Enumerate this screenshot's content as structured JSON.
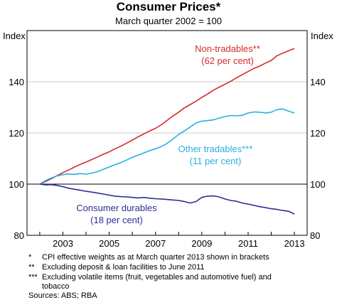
{
  "chart_data": {
    "type": "line",
    "title": "Consumer Prices*",
    "subtitle": "March quarter 2002 = 100",
    "ylabel_left": "Index",
    "ylabel_right": "Index",
    "ylim": [
      80,
      160
    ],
    "xlim": [
      2001.45,
      2013.55
    ],
    "yticks": [
      80,
      100,
      120,
      140
    ],
    "xticks": [
      2003,
      2005,
      2007,
      2009,
      2011,
      2013
    ],
    "grid": true,
    "series": [
      {
        "name": "Non-tradables**",
        "label_line1": "Non-tradables**",
        "label_line2": "(62 per cent)",
        "color": "#d22b2b",
        "x": [
          2002.0,
          2002.25,
          2002.5,
          2002.75,
          2003.0,
          2003.25,
          2003.5,
          2003.75,
          2004.0,
          2004.25,
          2004.5,
          2004.75,
          2005.0,
          2005.25,
          2005.5,
          2005.75,
          2006.0,
          2006.25,
          2006.5,
          2006.75,
          2007.0,
          2007.25,
          2007.5,
          2007.75,
          2008.0,
          2008.25,
          2008.5,
          2008.75,
          2009.0,
          2009.25,
          2009.5,
          2009.75,
          2010.0,
          2010.25,
          2010.5,
          2010.75,
          2011.0,
          2011.25,
          2011.5,
          2011.75,
          2012.0,
          2012.25,
          2012.5,
          2012.75,
          2013.0
        ],
        "values": [
          100.0,
          101.0,
          102.1,
          103.3,
          104.5,
          105.5,
          106.7,
          107.7,
          108.6,
          109.6,
          110.6,
          111.7,
          112.6,
          113.8,
          114.8,
          116.0,
          117.2,
          118.5,
          119.6,
          120.8,
          121.8,
          123.2,
          124.9,
          126.6,
          128.1,
          129.8,
          131.1,
          132.4,
          133.9,
          135.2,
          136.7,
          137.9,
          139.0,
          140.2,
          141.5,
          142.8,
          144.0,
          145.2,
          146.1,
          147.3,
          148.3,
          150.2,
          151.2,
          152.1,
          153.0
        ]
      },
      {
        "name": "Other tradables***",
        "label_line1": "Other tradables***",
        "label_line2": "(11 per cent)",
        "color": "#29aee3",
        "x": [
          2002.0,
          2002.25,
          2002.5,
          2002.75,
          2003.0,
          2003.25,
          2003.5,
          2003.75,
          2004.0,
          2004.25,
          2004.5,
          2004.75,
          2005.0,
          2005.25,
          2005.5,
          2005.75,
          2006.0,
          2006.25,
          2006.5,
          2006.75,
          2007.0,
          2007.25,
          2007.5,
          2007.75,
          2008.0,
          2008.25,
          2008.5,
          2008.75,
          2009.0,
          2009.25,
          2009.5,
          2009.75,
          2010.0,
          2010.25,
          2010.5,
          2010.75,
          2011.0,
          2011.25,
          2011.5,
          2011.75,
          2012.0,
          2012.25,
          2012.5,
          2012.75,
          2013.0
        ],
        "values": [
          100.0,
          101.4,
          102.4,
          103.2,
          103.7,
          104.0,
          103.8,
          104.1,
          103.9,
          104.3,
          104.9,
          105.8,
          106.7,
          107.6,
          108.4,
          109.4,
          110.5,
          111.3,
          112.2,
          113.1,
          113.8,
          114.7,
          115.9,
          117.6,
          119.4,
          120.8,
          122.3,
          123.9,
          124.6,
          124.8,
          125.1,
          125.8,
          126.4,
          126.8,
          126.7,
          126.9,
          127.8,
          128.2,
          128.1,
          127.8,
          128.1,
          129.1,
          129.4,
          128.5,
          127.8
        ]
      },
      {
        "name": "Consumer durables",
        "label_line1": "Consumer durables",
        "label_line2": "(18 per cent)",
        "color": "#2b2f8f",
        "x": [
          2002.0,
          2002.25,
          2002.5,
          2002.75,
          2003.0,
          2003.25,
          2003.5,
          2003.75,
          2004.0,
          2004.25,
          2004.5,
          2004.75,
          2005.0,
          2005.25,
          2005.5,
          2005.75,
          2006.0,
          2006.25,
          2006.5,
          2006.75,
          2007.0,
          2007.25,
          2007.5,
          2007.75,
          2008.0,
          2008.25,
          2008.5,
          2008.75,
          2009.0,
          2009.25,
          2009.5,
          2009.75,
          2010.0,
          2010.25,
          2010.5,
          2010.75,
          2011.0,
          2011.25,
          2011.5,
          2011.75,
          2012.0,
          2012.25,
          2012.5,
          2012.75,
          2013.0
        ],
        "values": [
          100.0,
          99.7,
          99.8,
          99.5,
          99.0,
          98.4,
          98.0,
          97.6,
          97.2,
          96.9,
          96.5,
          96.1,
          95.7,
          95.3,
          95.1,
          95.0,
          94.8,
          94.6,
          94.8,
          94.5,
          94.3,
          94.2,
          94.0,
          93.8,
          93.6,
          93.2,
          92.6,
          93.2,
          94.8,
          95.3,
          95.4,
          95.0,
          94.2,
          93.6,
          93.3,
          92.6,
          92.2,
          91.7,
          91.2,
          90.8,
          90.4,
          90.1,
          89.7,
          89.4,
          88.3
        ]
      }
    ]
  },
  "footnotes": [
    {
      "mark": "*",
      "text": "CPI effective weights as at March quarter 2013 shown in brackets"
    },
    {
      "mark": "**",
      "text": "Excluding deposit & loan facilities to June 2011"
    },
    {
      "mark": "***",
      "text": "Excluding volatile items (fruit, vegetables and automotive fuel) and"
    },
    {
      "mark": "",
      "text": "tobacco"
    }
  ],
  "sources": "Sources: ABS; RBA"
}
